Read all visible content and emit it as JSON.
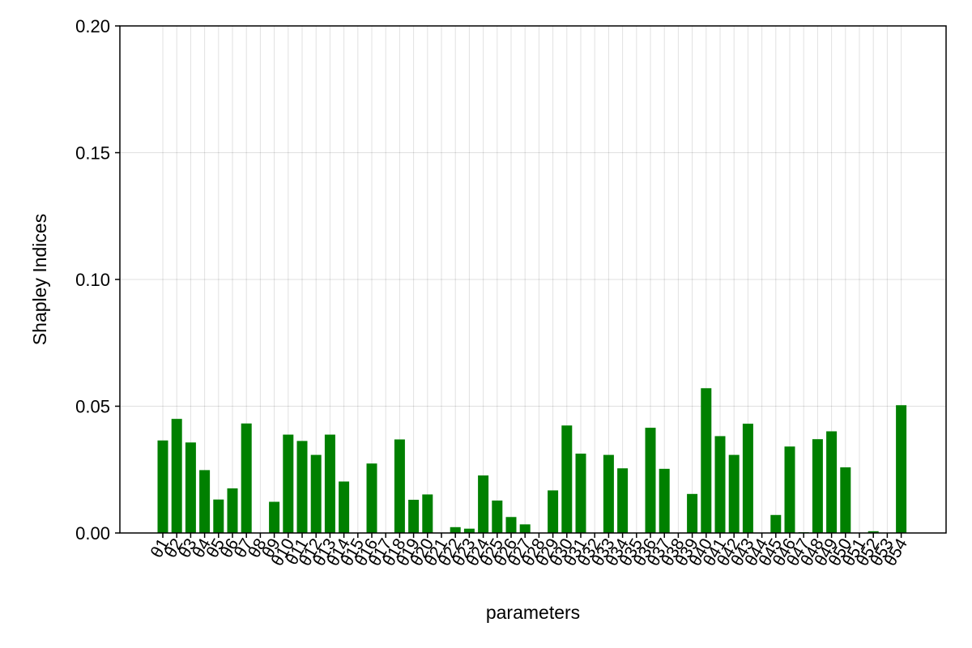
{
  "chart_data": {
    "type": "bar",
    "title": "",
    "xlabel": "parameters",
    "ylabel": "Shapley Indices",
    "ylim": [
      0,
      0.2
    ],
    "yticks": [
      "0.00",
      "0.05",
      "0.10",
      "0.15",
      "0.20"
    ],
    "grid": true,
    "bar_color": "#008000",
    "categories": [
      "θ1",
      "θ2",
      "θ3",
      "θ4",
      "θ5",
      "θ6",
      "θ7",
      "θ8",
      "θ9",
      "θ10",
      "θ11",
      "θ12",
      "θ13",
      "θ14",
      "θ15",
      "θ16",
      "θ17",
      "θ18",
      "θ19",
      "θ20",
      "θ21",
      "θ22",
      "θ23",
      "θ24",
      "θ25",
      "θ26",
      "θ27",
      "θ28",
      "θ29",
      "θ30",
      "θ31",
      "θ32",
      "θ33",
      "θ34",
      "θ35",
      "θ36",
      "θ37",
      "θ38",
      "θ39",
      "θ40",
      "θ41",
      "θ42",
      "θ43",
      "θ44",
      "θ45",
      "θ46",
      "θ47",
      "θ48",
      "θ49",
      "θ50",
      "θ51",
      "θ52",
      "θ53",
      "θ54"
    ],
    "values": [
      0.0365,
      0.045,
      0.0357,
      0.0248,
      0.0132,
      0.0176,
      0.0432,
      0,
      0.0123,
      0.0388,
      0.0363,
      0.0308,
      0.0388,
      0.0203,
      0,
      0.0274,
      0,
      0.0369,
      0.0131,
      0.0152,
      0,
      0.0023,
      0.0017,
      0.0227,
      0.0128,
      0.0063,
      0.0034,
      0,
      0.0168,
      0.0424,
      0.0313,
      0,
      0.0308,
      0.0255,
      0,
      0.0415,
      0.0253,
      0,
      0.0154,
      0.0571,
      0.0382,
      0.0308,
      0.0431,
      0,
      0.0071,
      0.0341,
      0.0003,
      0.037,
      0.0401,
      0.0259,
      0,
      0.0007,
      0,
      0.0504
    ]
  }
}
